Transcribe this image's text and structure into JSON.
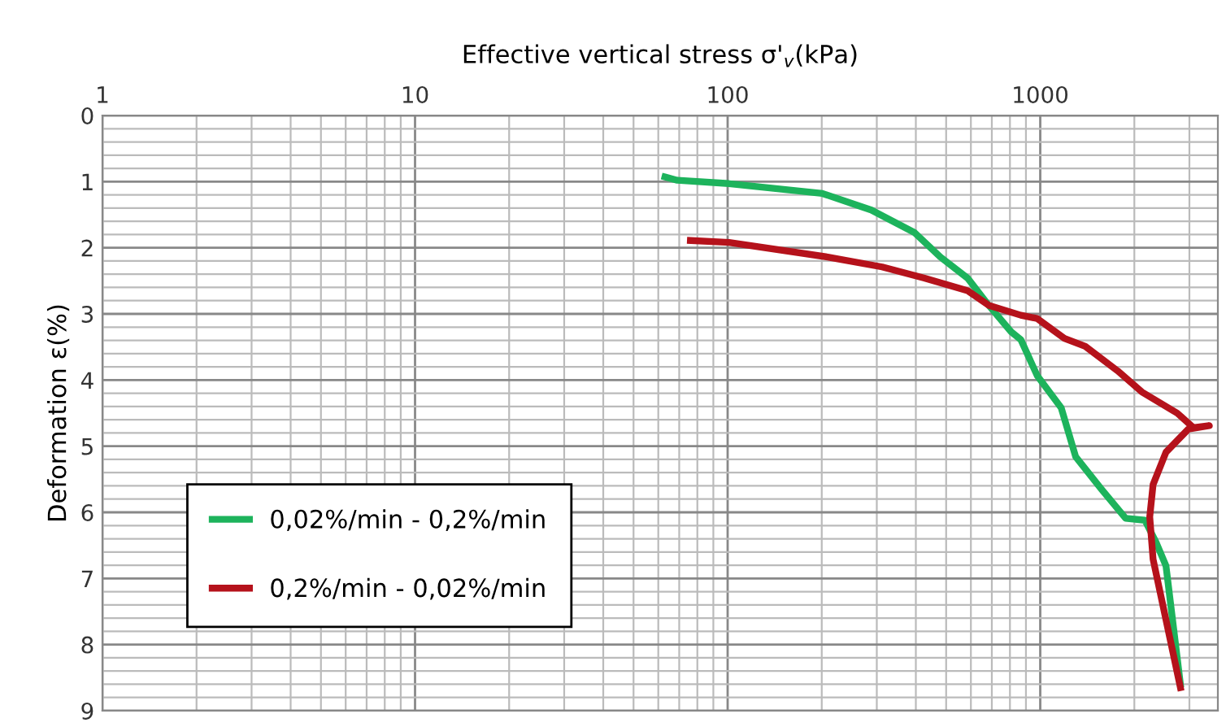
{
  "chart_data": {
    "type": "line",
    "xlabel": "Effective vertical stress σ'$_{v}$(kPa)",
    "ylabel": "Deformation ε(%)",
    "log": "x",
    "xlim": [
      1,
      3700
    ],
    "xticks": [
      1,
      10,
      100,
      1000
    ],
    "ylim": [
      9,
      0
    ],
    "yticks": [
      0,
      1,
      2,
      3,
      4,
      5,
      6,
      7,
      8,
      9
    ],
    "grid": true,
    "legend": "bottom left",
    "marker": "none",
    "line_style": "solid",
    "series": [
      {
        "name": "0,02%/min - 0,2%/min",
        "color": "#1db35c",
        "x": [
          63,
          69,
          101,
          201,
          288,
          396,
          479,
          586,
          684,
          807,
          867,
          977,
          1167,
          1298,
          1570,
          1876,
          2163,
          2350,
          2525,
          2808
        ],
        "values": [
          0.93,
          0.98,
          1.03,
          1.18,
          1.43,
          1.77,
          2.14,
          2.46,
          2.87,
          3.27,
          3.39,
          3.93,
          4.42,
          5.16,
          5.65,
          6.09,
          6.12,
          6.46,
          6.81,
          8.6
        ]
      },
      {
        "name": "0,2%/min - 0,02%/min",
        "color": "#b5121b",
        "x": [
          76,
          101,
          209,
          312,
          426,
          586,
          684,
          867,
          977,
          1195,
          1393,
          1767,
          2113,
          2742,
          3090,
          3475,
          2980,
          2525,
          2296,
          2240,
          2296,
          2808
        ],
        "values": [
          1.89,
          1.92,
          2.14,
          2.29,
          2.46,
          2.65,
          2.87,
          3.02,
          3.07,
          3.37,
          3.49,
          3.86,
          4.18,
          4.5,
          4.72,
          4.69,
          4.74,
          5.09,
          5.58,
          6.07,
          6.71,
          8.65
        ]
      }
    ]
  }
}
